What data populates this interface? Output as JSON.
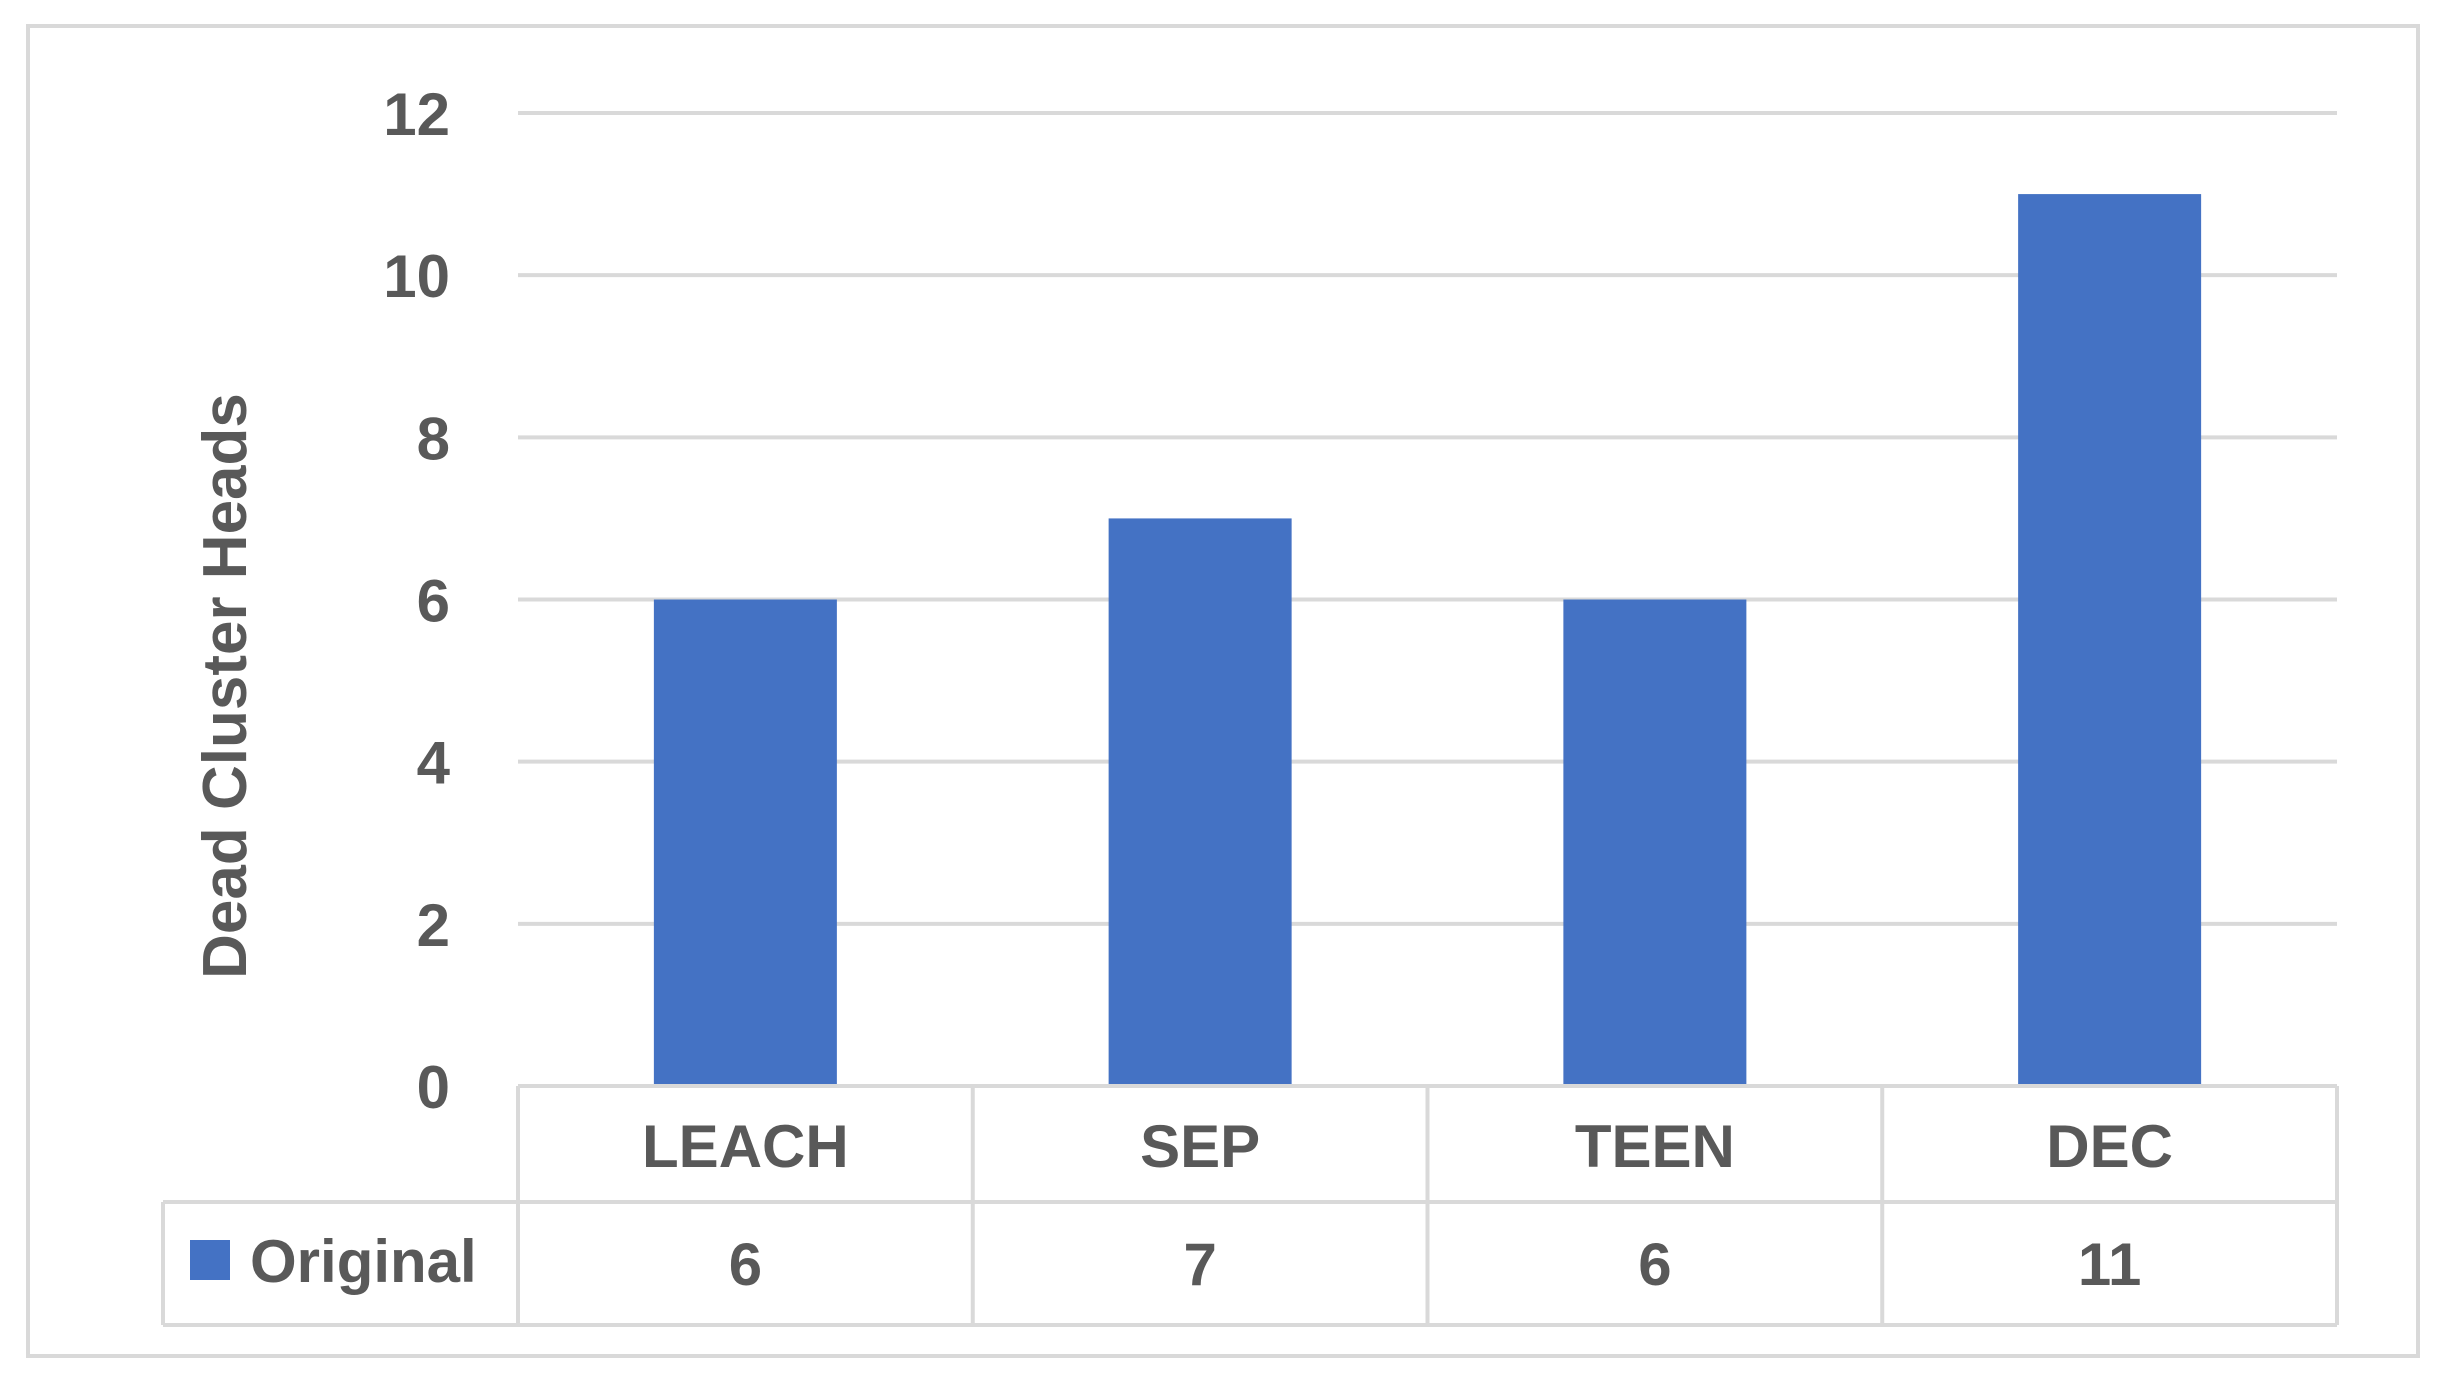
{
  "chart_data": {
    "type": "bar",
    "title": "",
    "xlabel": "",
    "ylabel": "Dead Cluster Heads",
    "categories": [
      "LEACH",
      "SEP",
      "TEEN",
      "DEC"
    ],
    "series": [
      {
        "name": "Original",
        "values": [
          6,
          7,
          6,
          11
        ],
        "color": "#4472c4"
      }
    ],
    "ylim": [
      0,
      12
    ],
    "yticks": [
      0,
      2,
      4,
      6,
      8,
      10,
      12
    ],
    "grid": true,
    "legend": "data-table-left",
    "data_table": true
  },
  "colors": {
    "bar": "#4472c4",
    "grid": "#d9d9d9",
    "text": "#595959",
    "frame": "#d9d9d9"
  }
}
